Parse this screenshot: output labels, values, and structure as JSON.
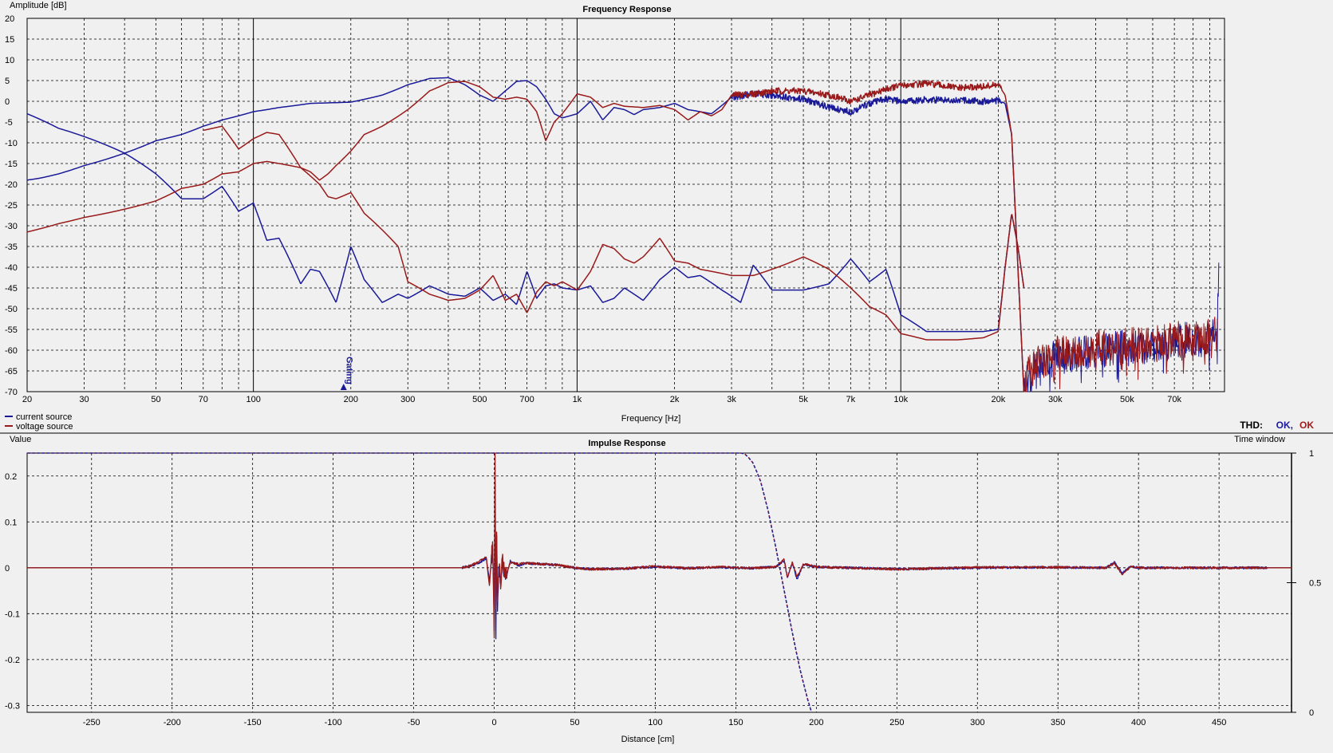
{
  "colors": {
    "background": "#f0f0f0",
    "grid": "#000000",
    "current_source": "#1a1a99",
    "voltage_source": "#991a1a",
    "thd_ok_blue": "#1a1aa0",
    "thd_ok_red": "#a01a1a"
  },
  "top": {
    "title": "Frequency Response",
    "ylabel": "Amplitude [dB]",
    "xlabel": "Frequency [Hz]",
    "gating_label": "Gating",
    "legend": [
      "current source",
      "voltage source"
    ],
    "thd_label": "THD:",
    "thd_ok_1": "OK,",
    "thd_ok_2": "OK"
  },
  "bottom": {
    "title": "Impulse Response",
    "ylabel": "Value",
    "xlabel": "Distance [cm]",
    "right_label": "Time window"
  },
  "chart_data": [
    {
      "type": "line",
      "title": "Frequency Response",
      "xlabel": "Frequency [Hz]",
      "ylabel": "Amplitude [dB]",
      "xscale": "log",
      "xlim": [
        20,
        100000
      ],
      "ylim": [
        -70,
        20
      ],
      "grid": true,
      "legend_position": "bottom-left",
      "x_tick_labels": [
        {
          "v": 20,
          "t": "20"
        },
        {
          "v": 30,
          "t": "30"
        },
        {
          "v": 50,
          "t": "50"
        },
        {
          "v": 70,
          "t": "70"
        },
        {
          "v": 100,
          "t": "100"
        },
        {
          "v": 200,
          "t": "200"
        },
        {
          "v": 300,
          "t": "300"
        },
        {
          "v": 500,
          "t": "500"
        },
        {
          "v": 700,
          "t": "700"
        },
        {
          "v": 1000,
          "t": "1k"
        },
        {
          "v": 2000,
          "t": "2k"
        },
        {
          "v": 3000,
          "t": "3k"
        },
        {
          "v": 5000,
          "t": "5k"
        },
        {
          "v": 7000,
          "t": "7k"
        },
        {
          "v": 10000,
          "t": "10k"
        },
        {
          "v": 20000,
          "t": "20k"
        },
        {
          "v": 30000,
          "t": "30k"
        },
        {
          "v": 50000,
          "t": "50k"
        },
        {
          "v": 70000,
          "t": "70k"
        }
      ],
      "y_ticks": [
        20,
        15,
        10,
        5,
        0,
        -5,
        -10,
        -15,
        -20,
        -25,
        -30,
        -35,
        -40,
        -45,
        -50,
        -55,
        -60,
        -65,
        -70
      ],
      "gating_frequency": 190,
      "series": [
        {
          "name": "current source",
          "role": "response",
          "color": "#1a1a99",
          "x": [
            20,
            22,
            25,
            30,
            40,
            50,
            60,
            70,
            80,
            100,
            120,
            150,
            200,
            250,
            300,
            350,
            400,
            450,
            500,
            550,
            600,
            650,
            700,
            750,
            800,
            850,
            900,
            1000,
            1100,
            1200,
            1300,
            1400,
            1500,
            1600,
            1800,
            2000,
            2200,
            2400,
            2600,
            2800,
            3000,
            3500,
            4000,
            4500,
            5000,
            6000,
            7000,
            8000,
            9000,
            10000,
            12000,
            15000,
            18000,
            20000,
            21000,
            22000,
            23000,
            24000
          ],
          "y": [
            -19,
            -18.5,
            -17.5,
            -15.5,
            -12.5,
            -9.5,
            -8,
            -6,
            -4.5,
            -2.5,
            -1.5,
            -0.5,
            -0.2,
            1.5,
            4,
            5.5,
            5.7,
            4,
            1.5,
            0,
            2.5,
            4.8,
            5,
            3.5,
            0.5,
            -3,
            -4,
            -3,
            0,
            -4.5,
            -1.5,
            -2,
            -3.2,
            -2,
            -1.5,
            -0.5,
            -2,
            -2.5,
            -3,
            -1,
            1,
            1.8,
            1.5,
            1,
            0.5,
            -1.5,
            -2.5,
            -0.5,
            0.5,
            0,
            0.4,
            0.3,
            0,
            0.2,
            -0.5,
            -8,
            -40,
            -70
          ]
        },
        {
          "name": "voltage source",
          "role": "response",
          "color": "#991a1a",
          "x": [
            70,
            80,
            90,
            100,
            110,
            120,
            140,
            150,
            160,
            170,
            180,
            200,
            220,
            250,
            300,
            350,
            400,
            450,
            500,
            550,
            600,
            650,
            700,
            750,
            800,
            850,
            900,
            1000,
            1100,
            1200,
            1300,
            1400,
            1600,
            1800,
            2000,
            2200,
            2400,
            2600,
            2800,
            3000,
            3500,
            4000,
            5000,
            6000,
            7000,
            8000,
            9000,
            10000,
            12000,
            15000,
            18000,
            20000,
            21000,
            22000,
            23000,
            24000
          ],
          "y": [
            -7,
            -6,
            -11.5,
            -9,
            -7.5,
            -8,
            -16,
            -17,
            -19,
            -17.5,
            -15.5,
            -12,
            -8,
            -6,
            -2,
            2.5,
            4.5,
            4.8,
            3.5,
            1,
            0.5,
            1,
            0.5,
            -2.5,
            -9.5,
            -5,
            -3,
            1.8,
            1,
            -1.5,
            -0.5,
            -1.2,
            -1.5,
            -1,
            -2,
            -4.5,
            -2.5,
            -3.5,
            -2,
            1.5,
            1.8,
            2.5,
            2.5,
            1.5,
            0,
            1.5,
            3,
            3.8,
            4.3,
            3.2,
            3.5,
            4,
            1.5,
            -8,
            -40,
            -70
          ]
        },
        {
          "name": "current source distortion",
          "role": "distortion",
          "color": "#1a1a99",
          "x": [
            20,
            25,
            30,
            40,
            50,
            60,
            70,
            80,
            90,
            100,
            110,
            120,
            140,
            150,
            160,
            180,
            200,
            220,
            250,
            280,
            300,
            350,
            400,
            450,
            500,
            550,
            600,
            650,
            700,
            750,
            800,
            850,
            900,
            1000,
            1100,
            1200,
            1300,
            1400,
            1600,
            1800,
            2000,
            2200,
            2400,
            2800,
            3000,
            3200,
            3500,
            4000,
            5000,
            6000,
            7000,
            8000,
            9000,
            10000,
            12000,
            15000,
            18000,
            20000,
            21000,
            22000,
            23000,
            24000
          ],
          "y": [
            -3,
            -6.5,
            -8.5,
            -12.5,
            -17.5,
            -23.5,
            -23.5,
            -20.5,
            -26.5,
            -24.5,
            -33.5,
            -33,
            -44,
            -40.5,
            -41,
            -48.5,
            -35,
            -43,
            -48.5,
            -46.5,
            -47.5,
            -44.5,
            -46.5,
            -47,
            -45,
            -48,
            -46.5,
            -49,
            -41,
            -47.5,
            -44.5,
            -44,
            -45,
            -45.5,
            -44.5,
            -48.5,
            -47.5,
            -45,
            -48,
            -43,
            -40,
            -42.5,
            -42,
            -45.5,
            -47,
            -48.5,
            -39.5,
            -45.5,
            -45.5,
            -44,
            -38,
            -43.5,
            -40.5,
            -51.5,
            -55.5,
            -55.5,
            -55.5,
            -55,
            -40,
            -27,
            -35,
            -45
          ]
        },
        {
          "name": "voltage source distortion",
          "role": "distortion",
          "color": "#991a1a",
          "x": [
            20,
            25,
            30,
            40,
            50,
            60,
            70,
            80,
            90,
            100,
            110,
            120,
            130,
            140,
            150,
            160,
            170,
            180,
            200,
            220,
            250,
            280,
            300,
            350,
            400,
            450,
            500,
            550,
            600,
            650,
            700,
            750,
            800,
            850,
            900,
            1000,
            1100,
            1200,
            1300,
            1400,
            1500,
            1600,
            1800,
            2000,
            2200,
            2400,
            2600,
            3000,
            3500,
            4000,
            5000,
            6000,
            7000,
            8000,
            9000,
            10000,
            12000,
            15000,
            18000,
            20000,
            21000,
            22000,
            23000,
            24000
          ],
          "y": [
            -31.5,
            -29.5,
            -28,
            -26,
            -24,
            -21,
            -20,
            -17.5,
            -17,
            -15,
            -14.5,
            -15,
            -15.5,
            -16,
            -18,
            -20,
            -23,
            -23.5,
            -22,
            -27,
            -31,
            -35,
            -43.5,
            -46.5,
            -48,
            -47.5,
            -45.5,
            -42,
            -48,
            -46.5,
            -51,
            -46,
            -43.5,
            -44.5,
            -43.5,
            -45.5,
            -41,
            -34.5,
            -35.5,
            -38,
            -39,
            -37.5,
            -33,
            -38.5,
            -39,
            -40.5,
            -41,
            -42,
            -42,
            -40.5,
            -37.5,
            -40.5,
            -45,
            -49.5,
            -51.5,
            -56,
            -57.5,
            -57.5,
            -57,
            -55.5,
            -40,
            -27,
            -35,
            -45
          ]
        },
        {
          "name": "current source harmonics",
          "role": "noise-floor",
          "color": "#1a1a99",
          "x": [
            24000,
            25000,
            27000,
            30000,
            35000,
            40000,
            50000,
            60000,
            70000,
            80000,
            90000,
            95000,
            96000
          ],
          "y": [
            -70,
            -66,
            -64,
            -61.5,
            -61,
            -60,
            -59.5,
            -59,
            -58,
            -57.5,
            -57,
            -56,
            -37
          ]
        },
        {
          "name": "voltage source harmonics",
          "role": "noise-floor",
          "color": "#991a1a",
          "x": [
            24000,
            25000,
            27000,
            30000,
            35000,
            40000,
            50000,
            60000,
            70000,
            80000,
            90000,
            95000
          ],
          "y": [
            -69,
            -65,
            -63,
            -61,
            -60.5,
            -59.5,
            -59,
            -58.5,
            -57.5,
            -57,
            -56.5,
            -56
          ]
        }
      ]
    },
    {
      "type": "line",
      "title": "Impulse Response",
      "xlabel": "Distance [cm]",
      "ylabel": "Value",
      "right_ylabel": "Time window",
      "xlim": [
        -290,
        495
      ],
      "ylim": [
        -0.315,
        0.25
      ],
      "right_ylim": [
        0,
        1
      ],
      "grid": true,
      "x_ticks": [
        -250,
        -200,
        -150,
        -100,
        -50,
        0,
        50,
        100,
        150,
        200,
        250,
        300,
        350,
        400,
        450
      ],
      "y_tick_labels": [
        {
          "v": 0.2,
          "t": "0.2"
        },
        {
          "v": 0.1,
          "t": "0.1"
        },
        {
          "v": 0,
          "t": "0"
        },
        {
          "v": -0.1,
          "t": "-0.1"
        },
        {
          "v": -0.2,
          "t": "-0.2"
        },
        {
          "v": -0.3,
          "t": "-0.3"
        }
      ],
      "right_y_ticks": [
        {
          "v": 1,
          "t": "1"
        },
        {
          "v": 0.5,
          "t": "0.5"
        },
        {
          "v": 0,
          "t": "0"
        }
      ],
      "series": [
        {
          "name": "current source",
          "color": "#1a1a99",
          "x": [
            -290,
            -20,
            -15,
            -10,
            -5,
            -3,
            -1,
            0,
            0.5,
            1,
            1.5,
            2,
            3,
            4,
            5,
            7,
            10,
            15,
            20,
            30,
            40,
            50,
            60,
            80,
            100,
            120,
            140,
            160,
            175,
            180,
            182,
            185,
            188,
            192,
            200,
            250,
            300,
            350,
            380,
            385,
            390,
            395,
            400,
            450,
            495
          ],
          "y": [
            0,
            0,
            0.004,
            0.01,
            0.02,
            -0.03,
            0.04,
            -0.12,
            0.17,
            -0.14,
            0.07,
            -0.08,
            0.01,
            -0.04,
            0.02,
            -0.025,
            0.015,
            0.005,
            0.01,
            0.008,
            0.006,
            0.0,
            -0.003,
            -0.002,
            0.002,
            -0.001,
            0.001,
            -0.001,
            0.002,
            0.015,
            -0.02,
            0.01,
            -0.025,
            0.008,
            0.002,
            -0.003,
            0.0,
            0.001,
            0.0,
            0.012,
            -0.012,
            0.003,
            0.0,
            0.0,
            0.0
          ]
        },
        {
          "name": "voltage source",
          "color": "#991a1a",
          "x": [
            -290,
            -20,
            -15,
            -10,
            -5,
            -3,
            -1,
            0,
            0.5,
            1,
            1.5,
            2,
            3,
            4,
            5,
            7,
            10,
            15,
            20,
            30,
            40,
            50,
            60,
            80,
            100,
            120,
            140,
            160,
            175,
            180,
            182,
            185,
            188,
            192,
            200,
            250,
            300,
            350,
            380,
            385,
            390,
            395,
            400,
            450,
            495
          ],
          "y": [
            0,
            0,
            0.004,
            0.012,
            0.025,
            -0.04,
            0.06,
            -0.15,
            0.25,
            -0.1,
            0.09,
            -0.06,
            0.015,
            -0.035,
            0.02,
            -0.02,
            0.012,
            0.008,
            0.01,
            0.008,
            0.006,
            0.0,
            -0.003,
            -0.002,
            0.003,
            -0.001,
            0.002,
            -0.001,
            0.002,
            0.018,
            -0.022,
            0.012,
            -0.02,
            0.008,
            0.002,
            -0.003,
            0.001,
            0.001,
            0.0,
            0.01,
            -0.015,
            0.003,
            0.0,
            0.0,
            0.0
          ]
        },
        {
          "name": "time window",
          "color": "#1a1a99",
          "dashed": true,
          "axis": "right",
          "x": [
            -290,
            0,
            150,
            155,
            160,
            165,
            170,
            175,
            180,
            185,
            190,
            195,
            197
          ],
          "y": [
            1,
            1,
            1,
            1,
            0.97,
            0.9,
            0.78,
            0.63,
            0.47,
            0.31,
            0.16,
            0.04,
            0
          ]
        }
      ]
    }
  ]
}
